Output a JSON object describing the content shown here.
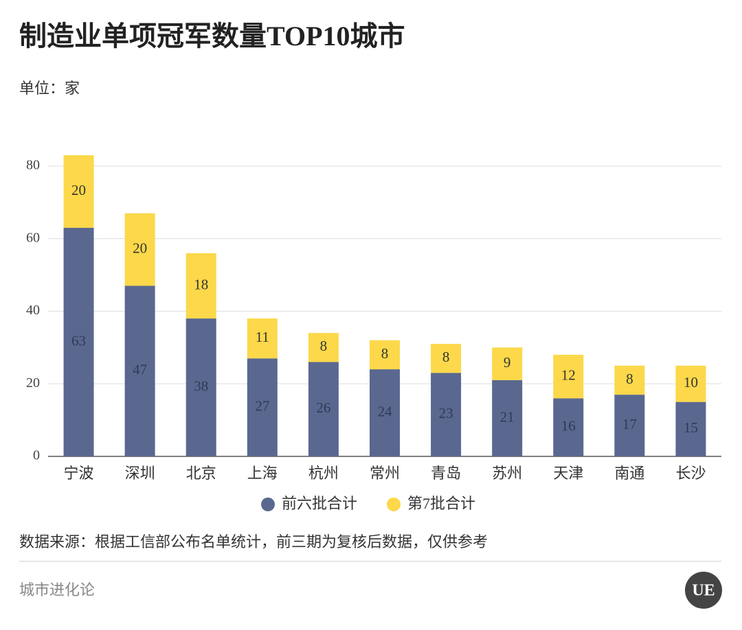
{
  "chart_data": {
    "type": "stacked_bar",
    "title": "制造业单项冠军数量TOP10城市",
    "subtitle": "单位：家",
    "categories": [
      "宁波",
      "深圳",
      "北京",
      "上海",
      "杭州",
      "常州",
      "青岛",
      "苏州",
      "天津",
      "南通",
      "长沙"
    ],
    "series": [
      {
        "name": "前六批合计",
        "color": "#5a6890",
        "values": [
          63,
          47,
          38,
          27,
          26,
          24,
          23,
          21,
          16,
          17,
          15
        ]
      },
      {
        "name": "第7批合计",
        "color": "#fcd84a",
        "values": [
          20,
          20,
          18,
          11,
          8,
          8,
          8,
          9,
          12,
          8,
          10
        ]
      }
    ],
    "ylim": [
      0,
      80
    ],
    "yticks": [
      0,
      20,
      40,
      60,
      80
    ],
    "grid": true,
    "source": "数据来源：根据工信部公布名单统计，前三期为复核后数据，仅供参考",
    "brand": "城市进化论",
    "logo": "UE"
  }
}
